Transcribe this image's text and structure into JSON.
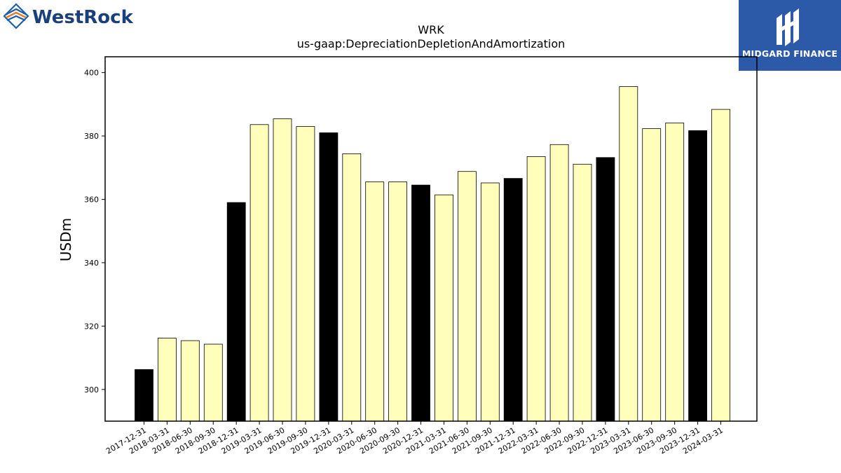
{
  "brand": {
    "left_logo_text": "WestRock",
    "right_logo_text": "MIDGARD FINANCE"
  },
  "chart_data": {
    "type": "bar",
    "title": "WRK",
    "subtitle": "us-gaap:DepreciationDepletionAndAmortization",
    "xlabel": "",
    "ylabel": "USDm",
    "ylim": [
      290,
      405
    ],
    "yticks": [
      300,
      320,
      340,
      360,
      380,
      400
    ],
    "grid": false,
    "categories": [
      "2017-12-31",
      "2018-03-31",
      "2018-06-30",
      "2018-09-30",
      "2018-12-31",
      "2019-03-31",
      "2019-06-30",
      "2019-09-30",
      "2019-12-31",
      "2020-03-31",
      "2020-06-30",
      "2020-09-30",
      "2020-12-31",
      "2021-03-31",
      "2021-06-30",
      "2021-09-30",
      "2021-12-31",
      "2022-03-31",
      "2022-06-30",
      "2022-09-30",
      "2022-12-31",
      "2023-03-31",
      "2023-06-30",
      "2023-09-30",
      "2023-12-31",
      "2024-03-31"
    ],
    "values": [
      306.3,
      316.2,
      315.4,
      314.3,
      359.0,
      383.6,
      385.4,
      383.0,
      381.0,
      374.4,
      365.5,
      365.5,
      364.5,
      361.4,
      368.8,
      365.2,
      366.6,
      373.5,
      377.3,
      371.1,
      373.2,
      395.6,
      382.3,
      384.1,
      381.7,
      388.4
    ],
    "highlight_dates": [
      "2017-12-31",
      "2018-12-31",
      "2019-12-31",
      "2020-12-31",
      "2021-12-31",
      "2022-12-31",
      "2023-12-31"
    ],
    "colors": {
      "highlight": "#000000",
      "normal": "#ffffbb",
      "edge": "#000000"
    }
  }
}
